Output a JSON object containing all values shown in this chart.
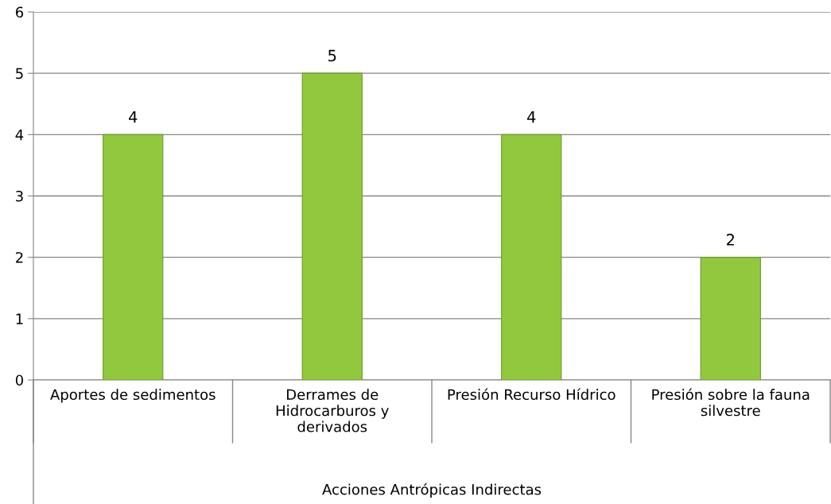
{
  "chart_data": {
    "type": "bar",
    "xlabel": "Acciones Antrópicas Indirectas",
    "categories": [
      "Aportes de sedimentos",
      "Derrames de\nHidrocarburos y\nderivados",
      "Presión Recurso Hídrico",
      "Presión sobre la fauna\nsilvestre"
    ],
    "values": [
      4,
      5,
      4,
      2
    ],
    "color": "#92c83e",
    "ylim": [
      0,
      6
    ],
    "yticks": [
      0,
      1,
      2,
      3,
      4,
      5,
      6
    ],
    "grid": "y",
    "data_labels": true
  }
}
